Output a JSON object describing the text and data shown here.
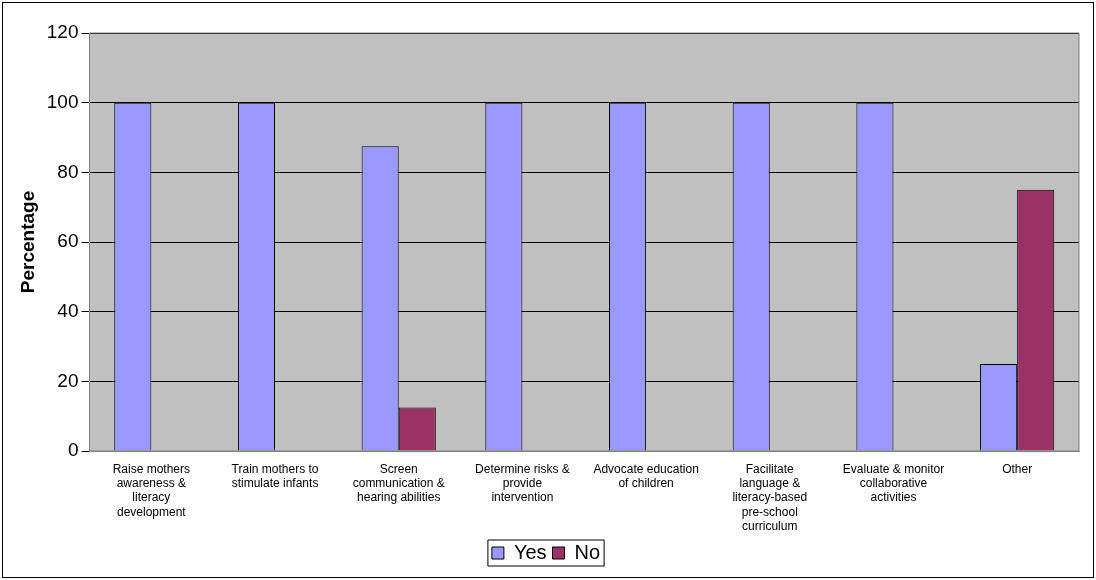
{
  "chart_data": {
    "type": "bar",
    "ylabel": "Percentage",
    "categories": [
      "Raise mothers awareness & literacy development",
      "Train mothers to stimulate infants",
      "Screen communication & hearing abilities",
      "Determine risks & provide intervention",
      "Advocate education of children",
      "Facilitate language & literacy-based pre-school curriculum",
      "Evaluate & monitor collaborative activities",
      "Other"
    ],
    "series": [
      {
        "name": "Yes",
        "color": "#9999ff",
        "values": [
          100,
          100,
          87.5,
          100,
          100,
          100,
          100,
          25
        ]
      },
      {
        "name": "No",
        "color": "#993366",
        "values": [
          0,
          0,
          12.5,
          0,
          0,
          0,
          0,
          75
        ]
      }
    ],
    "ylim": [
      0,
      120
    ],
    "yticks": [
      0,
      20,
      40,
      60,
      80,
      100,
      120
    ],
    "grid": "y",
    "legend": "bottom"
  }
}
